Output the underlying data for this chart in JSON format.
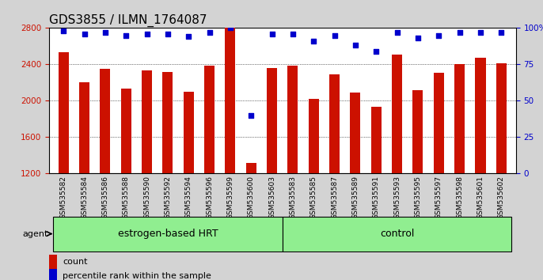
{
  "title": "GDS3855 / ILMN_1764087",
  "samples": [
    "GSM535582",
    "GSM535584",
    "GSM535586",
    "GSM535588",
    "GSM535590",
    "GSM535592",
    "GSM535594",
    "GSM535596",
    "GSM535599",
    "GSM535600",
    "GSM535603",
    "GSM535583",
    "GSM535585",
    "GSM535587",
    "GSM535589",
    "GSM535591",
    "GSM535593",
    "GSM535595",
    "GSM535597",
    "GSM535598",
    "GSM535601",
    "GSM535602"
  ],
  "counts": [
    2530,
    2200,
    2350,
    2130,
    2330,
    2320,
    2100,
    2390,
    2800,
    1320,
    2360,
    2390,
    2020,
    2290,
    2090,
    1930,
    2510,
    2120,
    2310,
    2400,
    2470,
    2415
  ],
  "percentiles": [
    98,
    96,
    97,
    95,
    96,
    96,
    94,
    97,
    100,
    40,
    96,
    96,
    91,
    95,
    88,
    84,
    97,
    93,
    95,
    97,
    97,
    97
  ],
  "bar_color": "#cc1100",
  "dot_color": "#0000cc",
  "ylim_left": [
    1200,
    2800
  ],
  "ylim_right": [
    0,
    100
  ],
  "yticks_left": [
    1200,
    1600,
    2000,
    2400,
    2800
  ],
  "yticks_right": [
    0,
    25,
    50,
    75,
    100
  ],
  "group1_label": "estrogen-based HRT",
  "group2_label": "control",
  "group1_count": 11,
  "group2_count": 11,
  "group_color": "#90ee90",
  "agent_label": "agent",
  "legend_count_label": "count",
  "legend_pct_label": "percentile rank within the sample",
  "background_color": "#d3d3d3",
  "plot_bg_color": "#ffffff",
  "title_fontsize": 11,
  "tick_fontsize": 7.5,
  "label_fontsize": 9
}
